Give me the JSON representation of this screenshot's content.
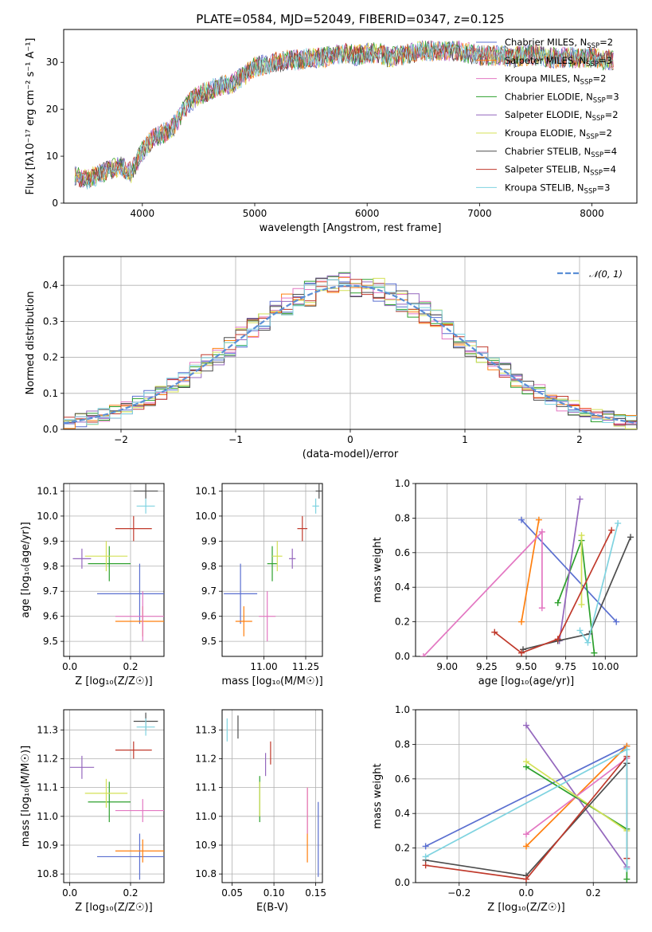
{
  "figure": {
    "title": "PLATE=0584, MJD=52049, FIBERID=0347, z=0.125"
  },
  "model_colors": [
    "#5a6fd0",
    "#ff7f0e",
    "#e377c2",
    "#2ca02c",
    "#9467bd",
    "#d4e157",
    "#4d4d4d",
    "#c0392b",
    "#7fd3e0"
  ],
  "chart_data": [
    {
      "id": "spectrum",
      "type": "line",
      "xlabel": "wavelength [Angstrom, rest frame]",
      "ylabel": "Flux [fλ10⁻¹⁷ erg cm⁻² s⁻¹ A⁻¹]",
      "xlim": [
        3300,
        8400
      ],
      "ylim": [
        0,
        37
      ],
      "xticks": [
        "4000",
        "5000",
        "6000",
        "7000",
        "8000"
      ],
      "yticks": [
        "0",
        "10",
        "20",
        "30"
      ],
      "grid": false,
      "legend_position": "top-right",
      "x": [
        3400,
        3500,
        3600,
        3700,
        3800,
        3900,
        4000,
        4100,
        4200,
        4300,
        4400,
        4500,
        4600,
        4700,
        4800,
        4900,
        5000,
        5100,
        5200,
        5300,
        5400,
        5500,
        5600,
        5700,
        5800,
        5900,
        6000,
        6100,
        6200,
        6300,
        6400,
        6500,
        6600,
        6700,
        6800,
        6900,
        7000,
        7100,
        7200,
        7300,
        7400,
        7500,
        7600,
        7700,
        7800,
        7900,
        8000,
        8100,
        8200
      ],
      "y": [
        6,
        5,
        6,
        7,
        8,
        6.5,
        11,
        14,
        15,
        17,
        21,
        23,
        24,
        25,
        25.5,
        27,
        29,
        29.5,
        30,
        30.5,
        30.5,
        31,
        31,
        31.5,
        32,
        31.5,
        32,
        32,
        31,
        31.5,
        32,
        32.5,
        32.5,
        32.5,
        32.5,
        32,
        31.5,
        31.5,
        31.5,
        31,
        31.5,
        31.5,
        31,
        31,
        31,
        31,
        31,
        30.5,
        30.5
      ],
      "series": [
        {
          "name": "Chabrier MILES, N_SSP=2",
          "label_main": "Chabrier MILES, N",
          "label_sub": "SSP",
          "label_end": "=2"
        },
        {
          "name": "Salpeter MILES, N_SSP=3",
          "label_main": "Salpeter MILES, N",
          "label_sub": "SSP",
          "label_end": "=3"
        },
        {
          "name": "Kroupa MILES, N_SSP=2",
          "label_main": "Kroupa MILES, N",
          "label_sub": "SSP",
          "label_end": "=2"
        },
        {
          "name": "Chabrier ELODIE, N_SSP=3",
          "label_main": "Chabrier ELODIE, N",
          "label_sub": "SSP",
          "label_end": "=3"
        },
        {
          "name": "Salpeter ELODIE, N_SSP=2",
          "label_main": "Salpeter ELODIE, N",
          "label_sub": "SSP",
          "label_end": "=2"
        },
        {
          "name": "Kroupa ELODIE, N_SSP=2",
          "label_main": "Kroupa ELODIE, N",
          "label_sub": "SSP",
          "label_end": "=2"
        },
        {
          "name": "Chabrier STELIB, N_SSP=4",
          "label_main": "Chabrier STELIB, N",
          "label_sub": "SSP",
          "label_end": "=4"
        },
        {
          "name": "Salpeter STELIB, N_SSP=4",
          "label_main": "Salpeter STELIB, N",
          "label_sub": "SSP",
          "label_end": "=4"
        },
        {
          "name": "Kroupa STELIB, N_SSP=3",
          "label_main": "Kroupa STELIB, N",
          "label_sub": "SSP",
          "label_end": "=3"
        }
      ]
    },
    {
      "id": "residuals",
      "type": "line",
      "xlabel": "(data-model)/error",
      "ylabel": "Normed distribution",
      "xlim": [
        -2.5,
        2.5
      ],
      "ylim": [
        0,
        0.48
      ],
      "xticks": [
        "−2",
        "−1",
        "0",
        "1",
        "2"
      ],
      "yticks": [
        "0.0",
        "0.1",
        "0.2",
        "0.3",
        "0.4"
      ],
      "grid": true,
      "legend_position": "top-right",
      "legend": "𝒩(0, 1)",
      "reference": {
        "mean": 0,
        "sigma": 1
      }
    },
    {
      "id": "age_vs_Z",
      "type": "scatter",
      "xlabel": "Z [log₁₀(Z/Z☉)]",
      "ylabel": "age  [log₁₀(age/yr)]",
      "xlim": [
        -0.02,
        0.31
      ],
      "ylim": [
        9.44,
        10.13
      ],
      "xticks": [
        "0.0",
        "0.2"
      ],
      "yticks": [
        "9.5",
        "9.6",
        "9.7",
        "9.8",
        "9.9",
        "10.0",
        "10.1"
      ],
      "grid": true,
      "points": [
        {
          "x": 0.23,
          "y": 9.69,
          "xerr": 0.14,
          "yerr": 0.12
        },
        {
          "x": 0.24,
          "y": 9.58,
          "xerr": 0.09,
          "yerr": 0.06
        },
        {
          "x": 0.24,
          "y": 9.6,
          "xerr": 0.09,
          "yerr": 0.1
        },
        {
          "x": 0.13,
          "y": 9.81,
          "xerr": 0.07,
          "yerr": 0.07
        },
        {
          "x": 0.04,
          "y": 9.83,
          "xerr": 0.03,
          "yerr": 0.04
        },
        {
          "x": 0.12,
          "y": 9.84,
          "xerr": 0.07,
          "yerr": 0.06
        },
        {
          "x": 0.25,
          "y": 10.1,
          "xerr": 0.04,
          "yerr": 0.03
        },
        {
          "x": 0.21,
          "y": 9.95,
          "xerr": 0.06,
          "yerr": 0.05
        },
        {
          "x": 0.25,
          "y": 10.04,
          "xerr": 0.03,
          "yerr": 0.03
        }
      ]
    },
    {
      "id": "age_vs_mass",
      "type": "scatter",
      "xlabel": "mass [log₁₀(M/M☉)]",
      "ylabel": "",
      "xlim": [
        10.75,
        11.35
      ],
      "ylim": [
        9.44,
        10.13
      ],
      "xticks": [
        "11.00",
        "11.25"
      ],
      "yticks": [
        "9.5",
        "9.6",
        "9.7",
        "9.8",
        "9.9",
        "10.0",
        "10.1"
      ],
      "grid": true,
      "points": [
        {
          "x": 10.86,
          "y": 9.69,
          "xerr": 0.1,
          "yerr": 0.12
        },
        {
          "x": 10.88,
          "y": 9.58,
          "xerr": 0.05,
          "yerr": 0.06
        },
        {
          "x": 11.02,
          "y": 9.6,
          "xerr": 0.05,
          "yerr": 0.1
        },
        {
          "x": 11.05,
          "y": 9.81,
          "xerr": 0.03,
          "yerr": 0.07
        },
        {
          "x": 11.17,
          "y": 9.83,
          "xerr": 0.02,
          "yerr": 0.04
        },
        {
          "x": 11.08,
          "y": 9.84,
          "xerr": 0.03,
          "yerr": 0.06
        },
        {
          "x": 11.33,
          "y": 10.1,
          "xerr": 0.02,
          "yerr": 0.03
        },
        {
          "x": 11.23,
          "y": 9.95,
          "xerr": 0.03,
          "yerr": 0.05
        },
        {
          "x": 11.31,
          "y": 10.04,
          "xerr": 0.02,
          "yerr": 0.03
        }
      ]
    },
    {
      "id": "weight_vs_age",
      "type": "line",
      "xlabel": "age  [log₁₀(age/yr)]",
      "ylabel": "mass weight",
      "xlim": [
        8.8,
        10.2
      ],
      "ylim": [
        0,
        1
      ],
      "xticks": [
        "9.00",
        "9.25",
        "9.50",
        "9.75",
        "10.00"
      ],
      "yticks": [
        "0.0",
        "0.2",
        "0.4",
        "0.6",
        "0.8",
        "1.0"
      ],
      "grid": true,
      "series": [
        {
          "x": [
            9.47,
            10.07
          ],
          "y": [
            0.79,
            0.2
          ]
        },
        {
          "x": [
            9.47,
            9.58
          ],
          "y": [
            0.2,
            0.79
          ]
        },
        {
          "x": [
            8.85,
            9.6,
            9.6
          ],
          "y": [
            0.0,
            0.72,
            0.28
          ]
        },
        {
          "x": [
            9.7,
            9.85,
            9.93
          ],
          "y": [
            0.31,
            0.67,
            0.02
          ]
        },
        {
          "x": [
            9.71,
            9.84
          ],
          "y": [
            0.09,
            0.91
          ]
        },
        {
          "x": [
            9.85,
            9.85
          ],
          "y": [
            0.3,
            0.7
          ]
        },
        {
          "x": [
            9.48,
            9.7,
            9.9,
            10.16
          ],
          "y": [
            0.04,
            0.09,
            0.13,
            0.69
          ]
        },
        {
          "x": [
            9.3,
            9.47,
            9.7,
            10.04
          ],
          "y": [
            0.14,
            0.02,
            0.1,
            0.73
          ]
        },
        {
          "x": [
            9.84,
            9.89,
            10.08
          ],
          "y": [
            0.15,
            0.08,
            0.77
          ]
        }
      ]
    },
    {
      "id": "mass_vs_Z",
      "type": "scatter",
      "xlabel": "Z [log₁₀(Z/Z☉)]",
      "ylabel": "mass [log₁₀(M/M☉)]",
      "xlim": [
        -0.02,
        0.31
      ],
      "ylim": [
        10.77,
        11.37
      ],
      "xticks": [
        "0.0",
        "0.2"
      ],
      "yticks": [
        "10.8",
        "10.9",
        "11.0",
        "11.1",
        "11.2",
        "11.3"
      ],
      "grid": true,
      "points": [
        {
          "x": 0.23,
          "y": 10.86,
          "xerr": 0.14,
          "yerr": 0.08
        },
        {
          "x": 0.24,
          "y": 10.88,
          "xerr": 0.09,
          "yerr": 0.04
        },
        {
          "x": 0.24,
          "y": 11.02,
          "xerr": 0.09,
          "yerr": 0.04
        },
        {
          "x": 0.13,
          "y": 11.05,
          "xerr": 0.07,
          "yerr": 0.07
        },
        {
          "x": 0.04,
          "y": 11.17,
          "xerr": 0.04,
          "yerr": 0.04
        },
        {
          "x": 0.12,
          "y": 11.08,
          "xerr": 0.07,
          "yerr": 0.05
        },
        {
          "x": 0.25,
          "y": 11.33,
          "xerr": 0.04,
          "yerr": 0.03
        },
        {
          "x": 0.21,
          "y": 11.23,
          "xerr": 0.06,
          "yerr": 0.03
        },
        {
          "x": 0.25,
          "y": 11.31,
          "xerr": 0.03,
          "yerr": 0.03
        }
      ]
    },
    {
      "id": "mass_vs_ebv",
      "type": "scatter",
      "xlabel": "E(B-V)",
      "ylabel": "",
      "xlim": [
        0.038,
        0.158
      ],
      "ylim": [
        10.77,
        11.37
      ],
      "xticks": [
        "0.05",
        "0.10",
        "0.15"
      ],
      "yticks": [
        "10.8",
        "10.9",
        "11.0",
        "11.1",
        "11.2",
        "11.3"
      ],
      "grid": true,
      "points": [
        {
          "x": 0.153,
          "y": 10.92,
          "xerr": 0,
          "yerr": 0.13
        },
        {
          "x": 0.14,
          "y": 10.97,
          "xerr": 0,
          "yerr": 0.13
        },
        {
          "x": 0.14,
          "y": 11.02,
          "xerr": 0,
          "yerr": 0.08
        },
        {
          "x": 0.083,
          "y": 11.06,
          "xerr": 0,
          "yerr": 0.08
        },
        {
          "x": 0.09,
          "y": 11.18,
          "xerr": 0,
          "yerr": 0.04
        },
        {
          "x": 0.083,
          "y": 11.06,
          "xerr": 0,
          "yerr": 0.06
        },
        {
          "x": 0.057,
          "y": 11.31,
          "xerr": 0,
          "yerr": 0.04
        },
        {
          "x": 0.096,
          "y": 11.22,
          "xerr": 0,
          "yerr": 0.04
        },
        {
          "x": 0.044,
          "y": 11.3,
          "xerr": 0,
          "yerr": 0.04
        }
      ]
    },
    {
      "id": "weight_vs_Z",
      "type": "line",
      "xlabel": "Z [log₁₀(Z/Z☉)]",
      "ylabel": "mass weight",
      "xlim": [
        -0.33,
        0.33
      ],
      "ylim": [
        0,
        1
      ],
      "xticks": [
        "−0.2",
        "0.0",
        "0.2"
      ],
      "yticks": [
        "0.0",
        "0.2",
        "0.4",
        "0.6",
        "0.8",
        "1.0"
      ],
      "grid": true,
      "series": [
        {
          "x": [
            -0.3,
            0.3
          ],
          "y": [
            0.21,
            0.79
          ]
        },
        {
          "x": [
            0.0,
            0.3
          ],
          "y": [
            0.21,
            0.79
          ]
        },
        {
          "x": [
            0.0,
            0.3
          ],
          "y": [
            0.28,
            0.72
          ]
        },
        {
          "x": [
            0.0,
            0.3,
            0.3
          ],
          "y": [
            0.67,
            0.31,
            0.02
          ]
        },
        {
          "x": [
            0.0,
            0.3
          ],
          "y": [
            0.91,
            0.09
          ]
        },
        {
          "x": [
            0.0,
            0.3
          ],
          "y": [
            0.7,
            0.3
          ]
        },
        {
          "x": [
            -0.3,
            0.0,
            0.3,
            0.3
          ],
          "y": [
            0.13,
            0.04,
            0.69,
            0.69
          ]
        },
        {
          "x": [
            -0.3,
            0.0,
            0.3,
            0.3
          ],
          "y": [
            0.1,
            0.02,
            0.73,
            0.14
          ]
        },
        {
          "x": [
            -0.3,
            0.3,
            0.3
          ],
          "y": [
            0.15,
            0.77,
            0.08
          ]
        }
      ]
    }
  ]
}
